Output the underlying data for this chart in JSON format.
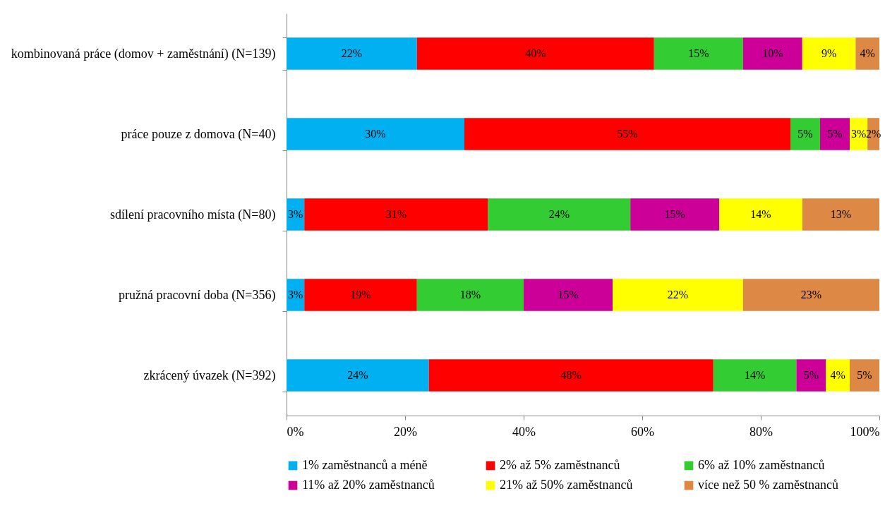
{
  "chart_data": {
    "type": "bar",
    "orientation": "horizontal",
    "stacked": true,
    "categories": [
      "kombinovaná práce (domov + zaměstnání) (N=139)",
      "práce pouze z domova (N=40)",
      "sdílení pracovního místa (N=80)",
      "pružná pracovní doba (N=356)",
      "zkrácený úvazek (N=392)"
    ],
    "series": [
      {
        "name": "1% zaměstnanců a méně",
        "color": "#00b0f0",
        "values": [
          22,
          30,
          3,
          3,
          24
        ],
        "value_labels": [
          "22%",
          "30%",
          "3%",
          "3%",
          "24%"
        ]
      },
      {
        "name": "2% až 5% zaměstnanců",
        "color": "#ff0000",
        "values": [
          40,
          55,
          31,
          19,
          48
        ],
        "value_labels": [
          "40%",
          "55%",
          "31%",
          "19%",
          "48%"
        ]
      },
      {
        "name": "6% až 10% zaměstnanců",
        "color": "#33cc33",
        "values": [
          15,
          5,
          24,
          18,
          14
        ],
        "value_labels": [
          "15%",
          "5%",
          "24%",
          "18%",
          "14%"
        ]
      },
      {
        "name": "11% až 20% zaměstnanců",
        "color": "#cc0099",
        "values": [
          10,
          5,
          15,
          15,
          5
        ],
        "value_labels": [
          "10%",
          "5%",
          "15%",
          "15%",
          "5%"
        ]
      },
      {
        "name": "21% až 50% zaměstnanců",
        "color": "#ffff00",
        "values": [
          9,
          3,
          14,
          22,
          4
        ],
        "value_labels": [
          "9%",
          "3%",
          "14%",
          "22%",
          "4%"
        ]
      },
      {
        "name": "více než 50 % zaměstnanců",
        "color": "#dd8844",
        "values": [
          4,
          2,
          13,
          23,
          5
        ],
        "value_labels": [
          "4%",
          "2%",
          "13%",
          "23%",
          "5%"
        ]
      }
    ],
    "xlim": [
      0,
      100
    ],
    "xticks": [
      {
        "value": 0,
        "label": "0%"
      },
      {
        "value": 20,
        "label": "20%"
      },
      {
        "value": 40,
        "label": "40%"
      },
      {
        "value": 60,
        "label": "60%"
      },
      {
        "value": 80,
        "label": "80%"
      },
      {
        "value": 100,
        "label": "100%"
      }
    ],
    "grid": false,
    "legend": "bottom"
  }
}
